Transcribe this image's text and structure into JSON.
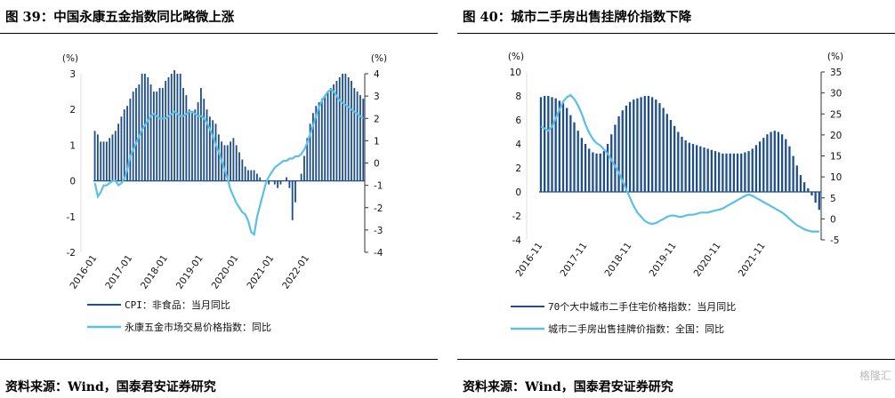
{
  "left_panel": {
    "title": "图 39：中国永康五金指数同比略微上涨",
    "source": "资料来源：Wind，国泰君安证券研究"
  },
  "right_panel": {
    "title": "图 40：城市二手房出售挂牌价指数下降",
    "source": "资料来源：Wind，国泰君安证券研究"
  },
  "watermark": "格隆汇",
  "chart_data": [
    {
      "type": "bar+line",
      "title": "",
      "unit_left": "(%)",
      "unit_right": "(%)",
      "left_ylim": [
        -2,
        3
      ],
      "right_ylim": [
        -4,
        4
      ],
      "left_ticks": [
        "-2",
        "-1",
        "0",
        "1",
        "2",
        "3"
      ],
      "right_ticks": [
        "-4",
        "-3",
        "-2",
        "-1",
        "0",
        "1",
        "2",
        "3",
        "4"
      ],
      "x_ticks": [
        "2016-01",
        "2017-01",
        "2018-01",
        "2019-01",
        "2020-01",
        "2021-01",
        "2022-01"
      ],
      "series": [
        {
          "name": "CPI：非食品：当月同比",
          "axis": "left",
          "kind": "bar",
          "color": "#1f4e8c",
          "values": [
            1.4,
            1.3,
            1.1,
            1.1,
            1.1,
            1.2,
            1.3,
            1.4,
            1.6,
            1.8,
            2.0,
            2.1,
            2.3,
            2.5,
            2.6,
            2.7,
            3.0,
            3.0,
            2.9,
            2.7,
            2.5,
            2.5,
            2.6,
            2.6,
            2.8,
            2.9,
            3.0,
            3.1,
            3.0,
            3.0,
            2.6,
            2.4,
            2.0,
            1.9,
            2.0,
            2.2,
            2.6,
            2.3,
            2.0,
            1.8,
            1.7,
            1.6,
            1.3,
            1.1,
            1.0,
            1.0,
            1.1,
            1.2,
            1.0,
            0.8,
            0.6,
            0.4,
            0.3,
            0.3,
            0.3,
            0.2,
            0.1,
            0.0,
            0.0,
            -0.1,
            0.0,
            -0.1,
            -0.2,
            -0.1,
            0.0,
            0.1,
            -0.2,
            -1.1,
            -0.6,
            0.0,
            0.2,
            0.7,
            1.2,
            1.6,
            1.9,
            2.1,
            2.2,
            2.3,
            2.4,
            2.5,
            2.6,
            2.7,
            2.8,
            2.9,
            3.0,
            3.0,
            2.9,
            2.8,
            2.6,
            2.5,
            2.4,
            2.3
          ]
        },
        {
          "name": "永康五金市场交易价格指数：同比",
          "axis": "right",
          "kind": "line",
          "color": "#5bbfe8",
          "values": [
            -0.9,
            -1.5,
            -1.3,
            -1.0,
            -1.0,
            -0.9,
            -0.8,
            -0.8,
            -1.0,
            -0.9,
            -0.7,
            -0.3,
            0.3,
            0.6,
            0.9,
            1.2,
            1.5,
            1.7,
            1.9,
            2.1,
            2.2,
            2.1,
            2.0,
            2.0,
            2.0,
            2.1,
            2.2,
            2.3,
            2.2,
            2.1,
            2.1,
            2.2,
            2.3,
            2.3,
            2.2,
            2.1,
            2.1,
            2.0,
            1.8,
            1.5,
            1.2,
            0.8,
            0.5,
            0.1,
            -0.3,
            -0.7,
            -1.2,
            -1.5,
            -1.8,
            -2.0,
            -2.2,
            -2.3,
            -2.6,
            -3.1,
            -3.2,
            -2.4,
            -1.9,
            -1.4,
            -0.9,
            -0.6,
            -0.4,
            -0.2,
            -0.1,
            0.0,
            0.1,
            0.1,
            0.2,
            0.2,
            0.3,
            0.3,
            0.4,
            0.6,
            0.9,
            1.3,
            1.7,
            2.1,
            2.5,
            2.8,
            3.0,
            3.2,
            3.3,
            3.2,
            3.0,
            2.8,
            2.7,
            2.6,
            2.5,
            2.4,
            2.3,
            2.2,
            2.1,
            2.0
          ]
        }
      ]
    },
    {
      "type": "bar+line",
      "title": "",
      "unit_left": "(%)",
      "unit_right": "(%)",
      "left_ylim": [
        -4,
        10
      ],
      "right_ylim": [
        -5,
        35
      ],
      "left_ticks": [
        "-4",
        "-2",
        "0",
        "2",
        "4",
        "6",
        "8",
        "10"
      ],
      "right_ticks": [
        "-5",
        "0",
        "5",
        "10",
        "15",
        "20",
        "25",
        "30",
        "35"
      ],
      "x_ticks": [
        "2016-11",
        "2017-11",
        "2018-11",
        "2019-11",
        "2020-11",
        "2021-11"
      ],
      "series": [
        {
          "name": "70个大中城市二手住宅价格指数：当月同比",
          "axis": "left",
          "kind": "bar",
          "color": "#1f4e8c",
          "values": [
            7.9,
            8.0,
            8.0,
            7.9,
            7.8,
            7.6,
            7.4,
            7.0,
            6.4,
            5.8,
            5.1,
            4.5,
            4.0,
            3.6,
            3.3,
            3.2,
            3.2,
            3.4,
            4.0,
            4.8,
            5.6,
            6.3,
            6.8,
            7.2,
            7.5,
            7.7,
            7.8,
            7.9,
            8.0,
            8.0,
            7.9,
            7.7,
            7.4,
            7.0,
            6.5,
            6.0,
            5.5,
            5.0,
            4.6,
            4.3,
            4.1,
            4.0,
            3.9,
            3.8,
            3.7,
            3.6,
            3.5,
            3.4,
            3.3,
            3.2,
            3.2,
            3.2,
            3.2,
            3.2,
            3.2,
            3.3,
            3.4,
            3.6,
            3.9,
            4.2,
            4.5,
            4.8,
            5.0,
            5.1,
            5.0,
            4.8,
            4.4,
            3.8,
            3.0,
            2.2,
            1.4,
            0.8,
            0.3,
            -0.3,
            -0.9,
            -1.5
          ]
        },
        {
          "name": "城市二手房出售挂牌价指数：全国：同比",
          "axis": "right",
          "kind": "line",
          "color": "#5bbfe8",
          "values": [
            22.0,
            21.5,
            21.0,
            22.0,
            24.0,
            26.0,
            28.0,
            29.0,
            29.5,
            28.5,
            27.0,
            25.0,
            22.5,
            20.5,
            19.0,
            18.0,
            17.5,
            16.5,
            15.5,
            14.0,
            12.5,
            11.0,
            9.0,
            7.0,
            5.0,
            3.0,
            1.5,
            0.5,
            -0.5,
            -1.0,
            -1.2,
            -1.0,
            -0.5,
            0.0,
            0.5,
            0.8,
            0.8,
            0.5,
            0.5,
            0.8,
            1.0,
            1.0,
            1.2,
            1.5,
            1.5,
            1.5,
            1.8,
            2.0,
            2.2,
            2.5,
            3.0,
            3.5,
            4.0,
            4.5,
            5.0,
            5.5,
            5.8,
            5.5,
            5.0,
            4.5,
            4.0,
            3.5,
            3.0,
            2.5,
            2.0,
            1.5,
            0.8,
            0.0,
            -0.8,
            -1.5,
            -2.0,
            -2.5,
            -2.8,
            -3.0,
            -3.0,
            -3.0
          ]
        }
      ]
    }
  ]
}
